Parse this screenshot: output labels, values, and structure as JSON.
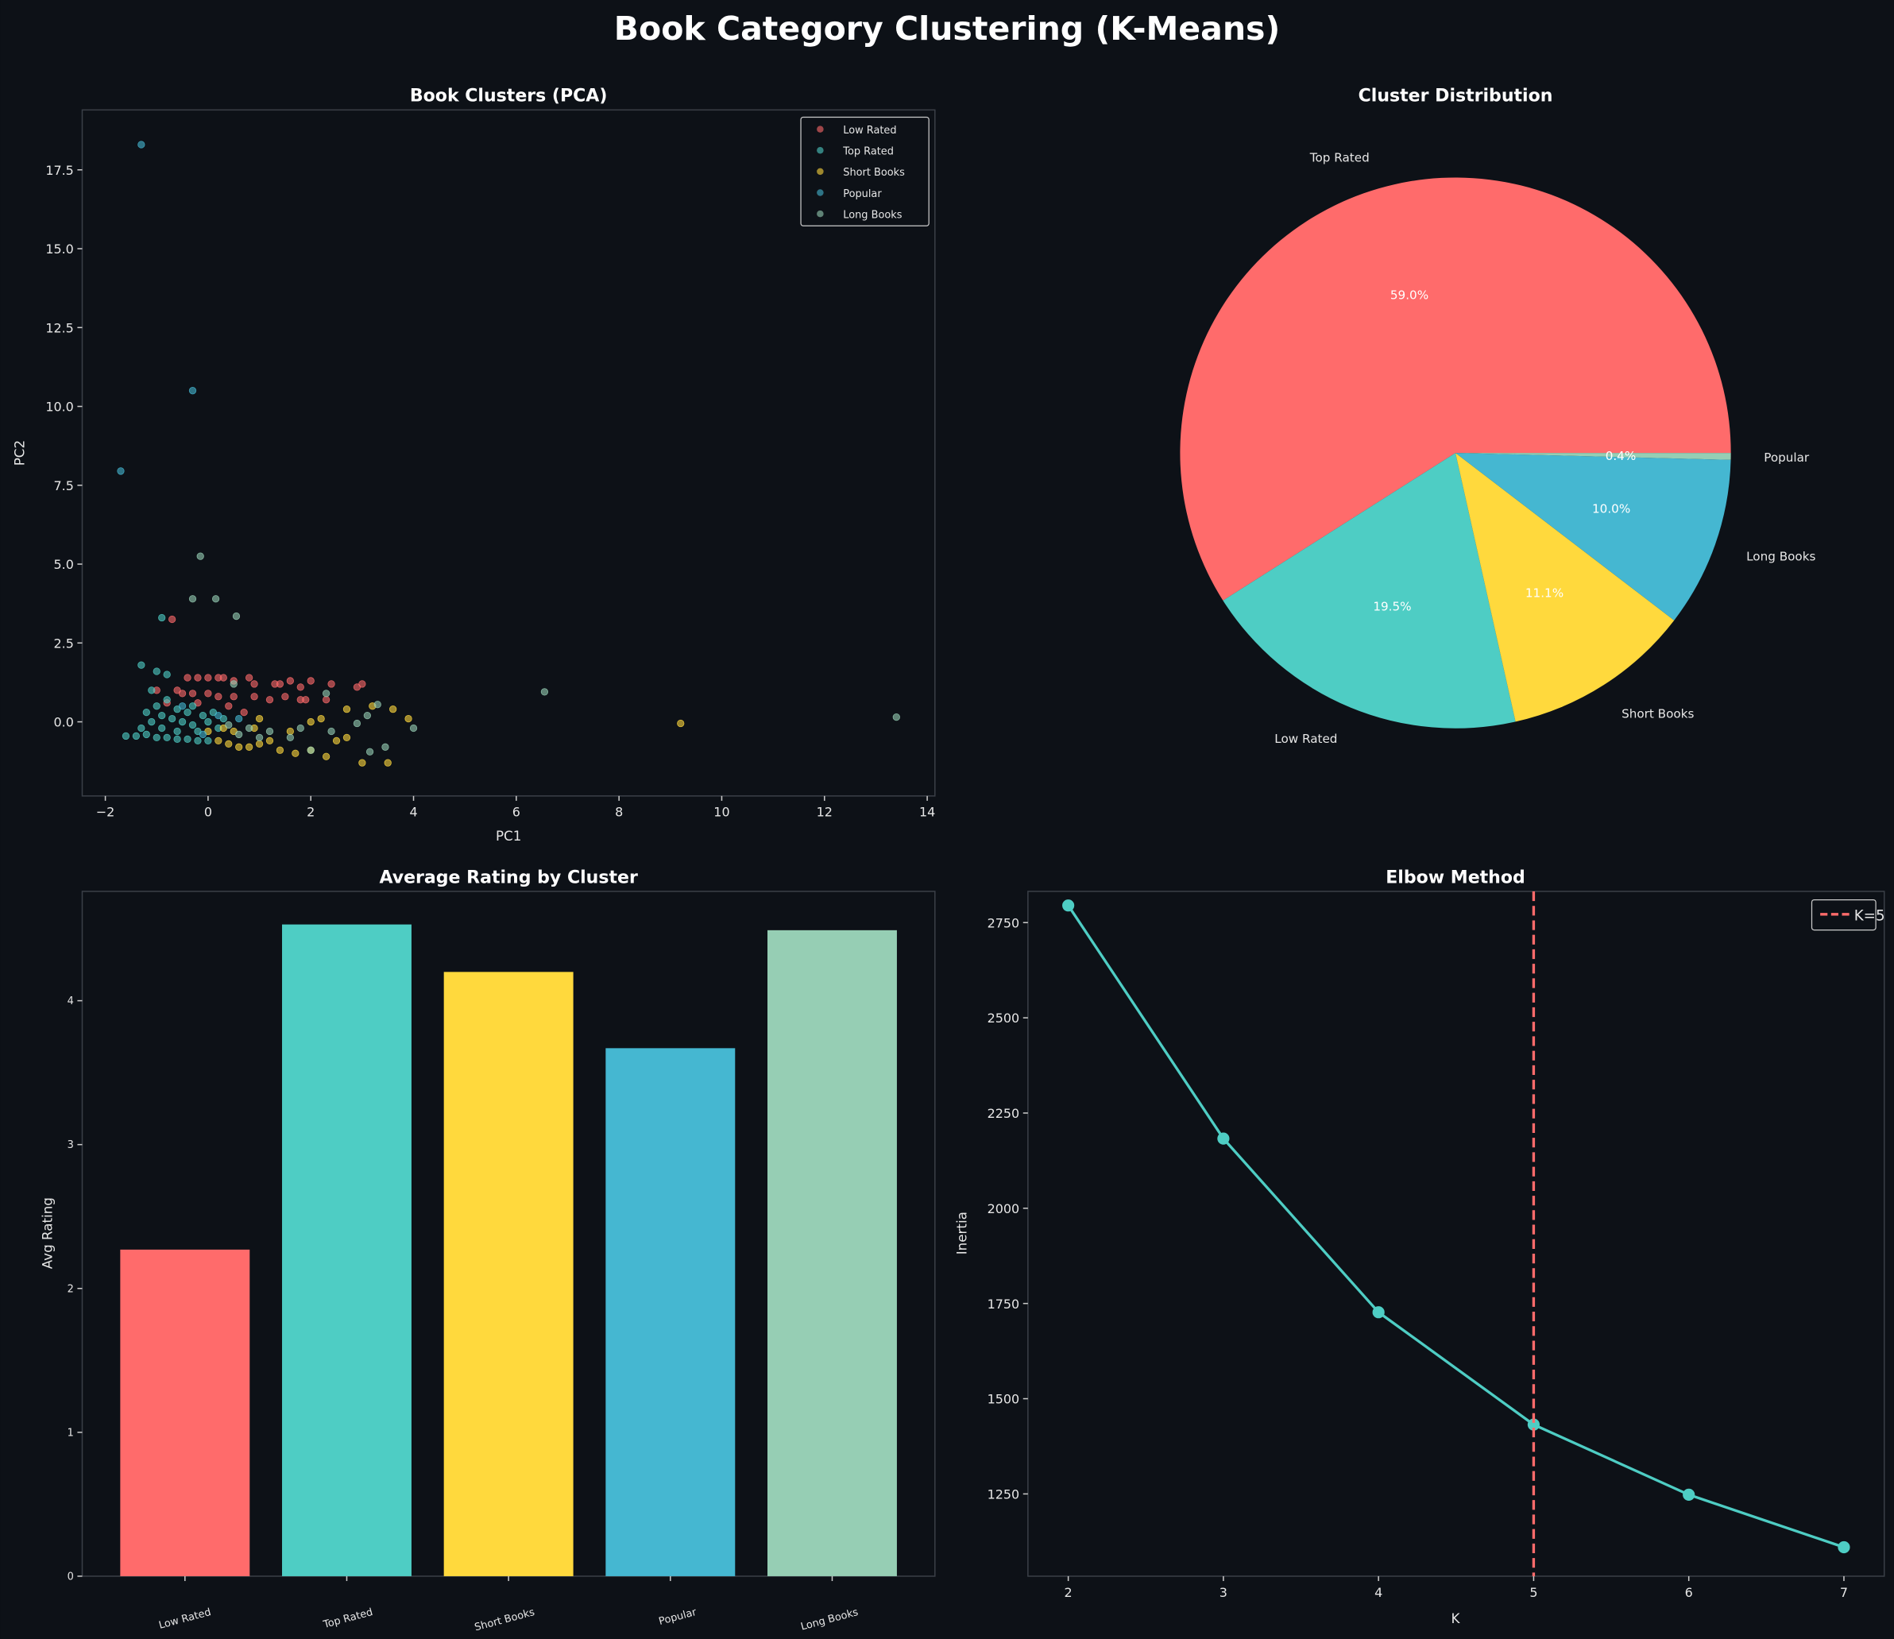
{
  "title": "Book Category Clustering (K-Means)",
  "colors": {
    "background": "#0d1117",
    "Low Rated": "#ff6b6b",
    "Top Rated": "#4ecdc4",
    "Short Books": "#ffd93d",
    "Popular": "#45b7d1",
    "Long Books": "#96ceb4"
  },
  "chart_data": [
    {
      "type": "scatter",
      "title": "Book Clusters (PCA)",
      "xlabel": "PC1",
      "ylabel": "PC2",
      "xlim": [
        -2.45,
        14.15
      ],
      "ylim": [
        -2.35,
        19.4
      ],
      "xticks": [
        "−2",
        "0",
        "2",
        "4",
        "6",
        "8",
        "10",
        "12",
        "14"
      ],
      "xtick_values": [
        -2,
        0,
        2,
        4,
        6,
        8,
        10,
        12,
        14
      ],
      "yticks": [
        "0.0",
        "2.5",
        "5.0",
        "7.5",
        "10.0",
        "12.5",
        "15.0",
        "17.5"
      ],
      "ytick_values": [
        0,
        2.5,
        5,
        7.5,
        10,
        12.5,
        15,
        17.5
      ],
      "legend": "top-right",
      "series": [
        {
          "name": "Low Rated",
          "color": "#ff6b6b",
          "points": [
            [
              -1,
              1.0
            ],
            [
              -0.6,
              1.0
            ],
            [
              -0.4,
              1.4
            ],
            [
              -0.2,
              1.4
            ],
            [
              0,
              1.4
            ],
            [
              0.2,
              1.4
            ],
            [
              0.3,
              1.4
            ],
            [
              0.5,
              1.3
            ],
            [
              0.8,
              1.4
            ],
            [
              0.9,
              1.2
            ],
            [
              1.3,
              1.2
            ],
            [
              1.4,
              1.2
            ],
            [
              1.6,
              1.3
            ],
            [
              1.8,
              1.1
            ],
            [
              2.0,
              1.3
            ],
            [
              2.4,
              1.2
            ],
            [
              2.9,
              1.1
            ],
            [
              3.0,
              1.2
            ],
            [
              -0.7,
              3.25
            ],
            [
              -0.5,
              0.9
            ],
            [
              -0.3,
              0.9
            ],
            [
              0,
              0.9
            ],
            [
              0.2,
              0.8
            ],
            [
              0.5,
              0.8
            ],
            [
              0.9,
              0.8
            ],
            [
              1.2,
              0.7
            ],
            [
              1.5,
              0.8
            ],
            [
              1.9,
              0.7
            ],
            [
              2.3,
              0.7
            ],
            [
              -0.8,
              0.6
            ],
            [
              -0.2,
              0.6
            ],
            [
              0.4,
              0.5
            ],
            [
              0.7,
              0.3
            ],
            [
              1.8,
              0.7
            ]
          ]
        },
        {
          "name": "Top Rated",
          "color": "#4ecdc4",
          "points": [
            [
              -1.3,
              1.8
            ],
            [
              -1.0,
              1.6
            ],
            [
              -0.8,
              1.5
            ],
            [
              -0.9,
              3.3
            ],
            [
              -1.1,
              1.0
            ],
            [
              -1.6,
              -0.45
            ],
            [
              -1.4,
              -0.45
            ],
            [
              -1.2,
              -0.4
            ],
            [
              -1.0,
              -0.5
            ],
            [
              -0.8,
              -0.5
            ],
            [
              -0.6,
              -0.55
            ],
            [
              -0.4,
              -0.55
            ],
            [
              -0.2,
              -0.6
            ],
            [
              0,
              -0.6
            ],
            [
              -1.3,
              -0.2
            ],
            [
              -1.1,
              0
            ],
            [
              -0.9,
              0.2
            ],
            [
              -0.7,
              0.1
            ],
            [
              -0.5,
              0
            ],
            [
              -0.3,
              -0.1
            ],
            [
              -0.1,
              0.2
            ],
            [
              0.1,
              0.3
            ],
            [
              -1.0,
              0.5
            ],
            [
              -0.8,
              0.7
            ],
            [
              -0.6,
              0.4
            ],
            [
              -0.4,
              0.3
            ],
            [
              -0.2,
              -0.3
            ],
            [
              0.2,
              -0.2
            ],
            [
              -1.2,
              0.3
            ],
            [
              -0.9,
              -0.2
            ],
            [
              -0.6,
              -0.3
            ],
            [
              -0.3,
              0.5
            ],
            [
              0,
              0
            ],
            [
              0.3,
              0.1
            ]
          ]
        },
        {
          "name": "Short Books",
          "color": "#ffd93d",
          "points": [
            [
              0,
              -0.3
            ],
            [
              0.2,
              -0.6
            ],
            [
              0.4,
              -0.7
            ],
            [
              0.6,
              -0.8
            ],
            [
              0.8,
              -0.8
            ],
            [
              1.0,
              -0.7
            ],
            [
              1.2,
              -0.6
            ],
            [
              1.4,
              -0.9
            ],
            [
              1.7,
              -1.0
            ],
            [
              2.0,
              -0.9
            ],
            [
              2.3,
              -1.1
            ],
            [
              2.5,
              -0.6
            ],
            [
              2.7,
              -0.5
            ],
            [
              3.0,
              -1.3
            ],
            [
              3.5,
              -1.3
            ],
            [
              3.9,
              0.1
            ],
            [
              3.6,
              0.4
            ],
            [
              3.2,
              0.5
            ],
            [
              2.7,
              0.4
            ],
            [
              2.2,
              0.1
            ],
            [
              2.0,
              0
            ],
            [
              1.6,
              -0.3
            ],
            [
              0.9,
              -0.2
            ],
            [
              0.5,
              -0.3
            ],
            [
              9.2,
              -0.05
            ],
            [
              0.3,
              -0.2
            ],
            [
              1.0,
              0.1
            ]
          ]
        },
        {
          "name": "Popular",
          "color": "#45b7d1",
          "points": [
            [
              -1.3,
              18.3
            ],
            [
              -0.3,
              10.5
            ],
            [
              -1.7,
              7.95
            ],
            [
              0.2,
              0.2
            ],
            [
              -0.5,
              0.5
            ],
            [
              -0.1,
              -0.4
            ],
            [
              0.6,
              0.1
            ]
          ]
        },
        {
          "name": "Long Books",
          "color": "#96ceb4",
          "points": [
            [
              -0.15,
              5.25
            ],
            [
              -0.3,
              3.9
            ],
            [
              0.15,
              3.9
            ],
            [
              0.55,
              3.35
            ],
            [
              6.55,
              0.95
            ],
            [
              13.4,
              0.15
            ],
            [
              3.3,
              0.55
            ],
            [
              4.0,
              -0.2
            ],
            [
              3.45,
              -0.8
            ],
            [
              3.15,
              -0.95
            ],
            [
              2.9,
              -0.05
            ],
            [
              3.1,
              0.2
            ],
            [
              2.3,
              0.9
            ],
            [
              2.0,
              -0.9
            ],
            [
              1.6,
              -0.5
            ],
            [
              1.2,
              -0.3
            ],
            [
              0.8,
              -0.2
            ],
            [
              0.4,
              -0.1
            ],
            [
              0.5,
              1.2
            ],
            [
              1.8,
              -0.2
            ],
            [
              2.4,
              -0.3
            ],
            [
              1.0,
              -0.5
            ],
            [
              0.6,
              -0.4
            ]
          ]
        }
      ]
    },
    {
      "type": "pie",
      "title": "Cluster Distribution",
      "slices": [
        {
          "label": "Top Rated",
          "value": 59.0,
          "pct": "59.0%",
          "color": "#ff6b6b"
        },
        {
          "label": "Low Rated",
          "value": 19.5,
          "pct": "19.5%",
          "color": "#4ecdc4"
        },
        {
          "label": "Short Books",
          "value": 11.1,
          "pct": "11.1%",
          "color": "#ffd93d"
        },
        {
          "label": "Long Books",
          "value": 10.0,
          "pct": "10.0%",
          "color": "#45b7d1"
        },
        {
          "label": "Popular",
          "value": 0.4,
          "pct": "0.4%",
          "color": "#96ceb4"
        }
      ]
    },
    {
      "type": "bar",
      "title": "Average Rating by Cluster",
      "xlabel": "",
      "ylabel": "Avg Rating",
      "categories": [
        "Low Rated",
        "Top Rated",
        "Short Books",
        "Popular",
        "Long Books"
      ],
      "values": [
        2.27,
        4.53,
        4.2,
        3.67,
        4.49
      ],
      "colors": [
        "#ff6b6b",
        "#4ecdc4",
        "#ffd93d",
        "#45b7d1",
        "#96ceb4"
      ],
      "ylim": [
        0,
        4.76
      ],
      "yticks": [
        "0",
        "1",
        "2",
        "3",
        "4"
      ]
    },
    {
      "type": "line",
      "title": "Elbow Method",
      "xlabel": "K",
      "ylabel": "Inertia",
      "x": [
        2,
        3,
        4,
        5,
        6,
        7
      ],
      "y": [
        2795,
        2183,
        1727,
        1432,
        1248,
        1110
      ],
      "color": "#4ecdc4",
      "xlim": [
        1.74,
        7.26
      ],
      "ylim": [
        1034,
        2832
      ],
      "xticks": [
        "2",
        "3",
        "4",
        "5",
        "6",
        "7"
      ],
      "yticks": [
        "1250",
        "1500",
        "1750",
        "2000",
        "2250",
        "2500",
        "2750"
      ],
      "vline": {
        "x": 5,
        "label": "K=5",
        "color": "#ff6b6b"
      },
      "legend": "top-right"
    }
  ]
}
